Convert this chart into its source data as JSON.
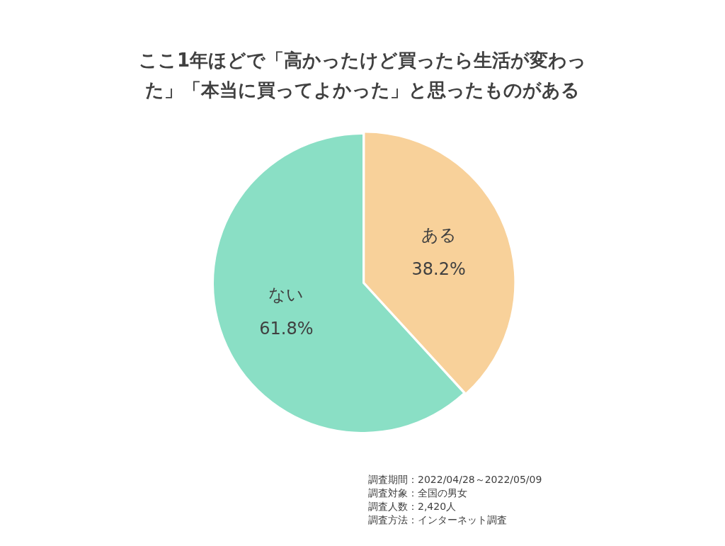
{
  "chart_data": {
    "type": "pie",
    "title": "ここ1年ほどで「高かったけど買ったら生活が変わった」「本当に買ってよかった」と思ったものがある",
    "categories": [
      "ある",
      "ない"
    ],
    "values": [
      38.2,
      61.8
    ],
    "value_labels": [
      "38.2%",
      "61.8%"
    ],
    "colors": [
      "#f8d19a",
      "#8adfc5"
    ],
    "legend": false,
    "annotations": [
      "調査期間：2022/04/28～2022/05/09",
      "調査対象：全国の男女",
      "調査人数：2,420人",
      "調査方法：インターネット調査"
    ]
  }
}
